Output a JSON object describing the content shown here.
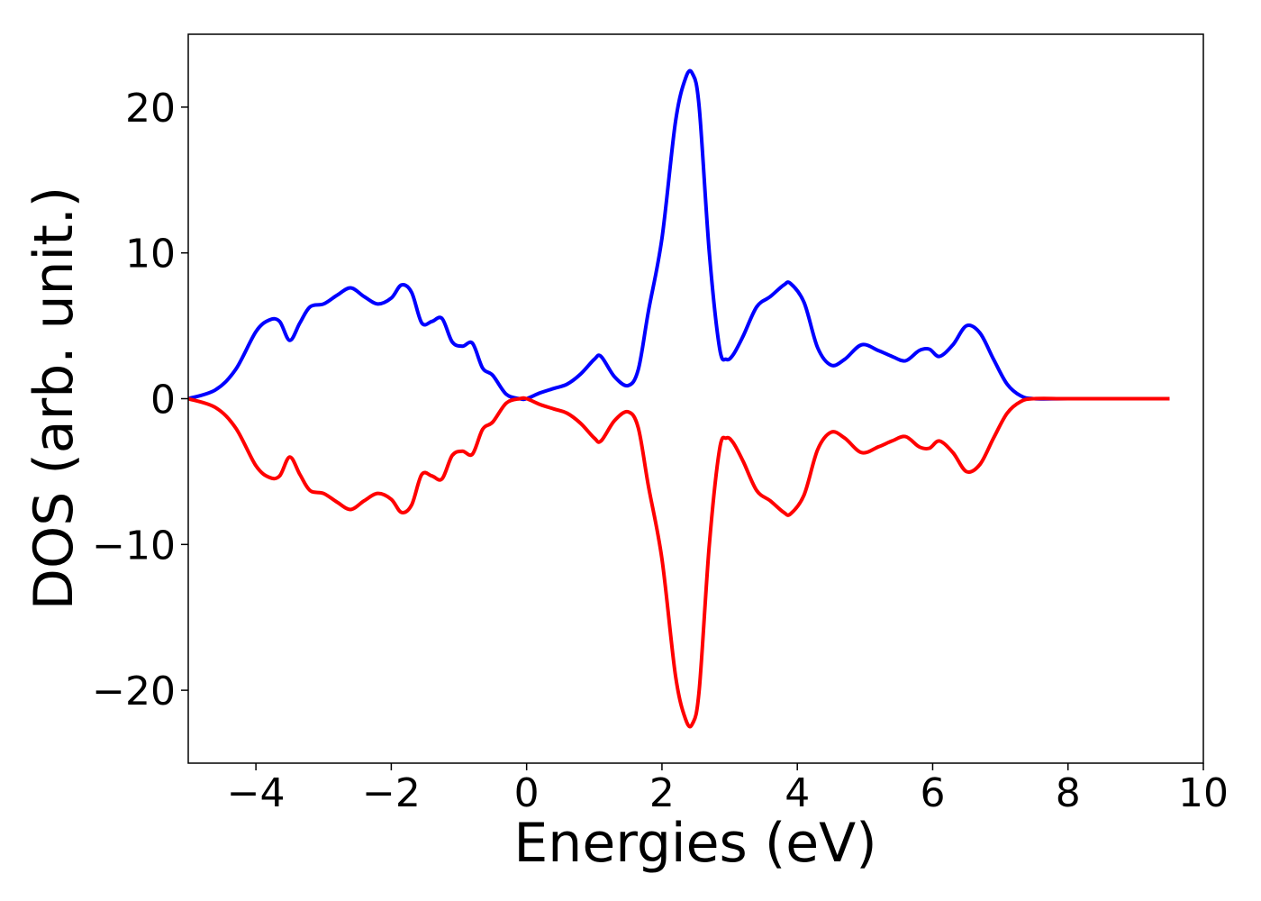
{
  "chart_data": {
    "type": "line",
    "title": "",
    "xlabel": "Energies (eV)",
    "ylabel": "DOS (arb. unit.)",
    "xlim": [
      -5,
      10
    ],
    "ylim": [
      -25,
      25
    ],
    "grid": false,
    "legend": "none",
    "xticks": [
      -4,
      -2,
      0,
      2,
      4,
      6,
      8,
      10
    ],
    "xtick_labels": [
      "−4",
      "−2",
      "0",
      "2",
      "4",
      "6",
      "8",
      "10"
    ],
    "yticks": [
      -20,
      -10,
      0,
      10,
      20
    ],
    "ytick_labels": [
      "−20",
      "−10",
      "0",
      "10",
      "20"
    ],
    "colors": {
      "spin_up": "#0000ff",
      "spin_down": "#ff0000"
    },
    "x": [
      -5.0,
      -4.6,
      -4.3,
      -4.0,
      -3.8,
      -3.65,
      -3.5,
      -3.35,
      -3.2,
      -3.0,
      -2.8,
      -2.6,
      -2.4,
      -2.2,
      -2.0,
      -1.85,
      -1.7,
      -1.55,
      -1.4,
      -1.25,
      -1.1,
      -0.95,
      -0.8,
      -0.65,
      -0.5,
      -0.3,
      -0.1,
      0.0,
      0.2,
      0.4,
      0.6,
      0.8,
      1.0,
      1.1,
      1.3,
      1.5,
      1.65,
      1.8,
      2.0,
      2.2,
      2.35,
      2.45,
      2.55,
      2.7,
      2.85,
      2.95,
      3.05,
      3.2,
      3.4,
      3.6,
      3.8,
      3.9,
      4.1,
      4.3,
      4.5,
      4.7,
      4.95,
      5.2,
      5.4,
      5.6,
      5.8,
      5.95,
      6.1,
      6.3,
      6.5,
      6.7,
      6.9,
      7.1,
      7.3,
      7.5,
      8.0,
      9.0,
      9.5
    ],
    "series": [
      {
        "values": [
          0.0,
          0.6,
          2.0,
          4.6,
          5.4,
          5.3,
          4.0,
          5.2,
          6.3,
          6.5,
          7.1,
          7.6,
          7.0,
          6.5,
          6.9,
          7.8,
          7.3,
          5.2,
          5.3,
          5.5,
          3.9,
          3.6,
          3.8,
          2.1,
          1.6,
          0.3,
          0.0,
          0.0,
          0.4,
          0.7,
          1.0,
          1.7,
          2.7,
          2.9,
          1.5,
          0.9,
          2.0,
          6.0,
          11.0,
          19.0,
          22.0,
          22.3,
          20.0,
          10.0,
          3.5,
          2.7,
          3.0,
          4.3,
          6.3,
          7.0,
          7.8,
          7.9,
          6.6,
          3.5,
          2.3,
          2.7,
          3.7,
          3.3,
          2.9,
          2.6,
          3.3,
          3.4,
          2.9,
          3.7,
          5.0,
          4.5,
          2.7,
          1.0,
          0.2,
          0.0,
          0.0,
          0.0,
          0.0
        ]
      },
      {
        "values": [
          0.0,
          -0.6,
          -2.0,
          -4.6,
          -5.4,
          -5.3,
          -4.0,
          -5.2,
          -6.3,
          -6.5,
          -7.1,
          -7.6,
          -7.0,
          -6.5,
          -6.9,
          -7.8,
          -7.3,
          -5.2,
          -5.3,
          -5.5,
          -3.9,
          -3.6,
          -3.8,
          -2.1,
          -1.6,
          -0.3,
          0.0,
          0.0,
          -0.4,
          -0.7,
          -1.0,
          -1.7,
          -2.7,
          -2.9,
          -1.5,
          -0.9,
          -2.0,
          -6.0,
          -11.0,
          -19.0,
          -22.0,
          -22.3,
          -20.0,
          -10.0,
          -3.5,
          -2.7,
          -3.0,
          -4.3,
          -6.3,
          -7.0,
          -7.8,
          -7.9,
          -6.6,
          -3.5,
          -2.3,
          -2.7,
          -3.7,
          -3.3,
          -2.9,
          -2.6,
          -3.3,
          -3.4,
          -2.9,
          -3.7,
          -5.0,
          -4.5,
          -2.7,
          -1.0,
          -0.2,
          0.0,
          0.0,
          0.0,
          0.0
        ]
      }
    ]
  }
}
